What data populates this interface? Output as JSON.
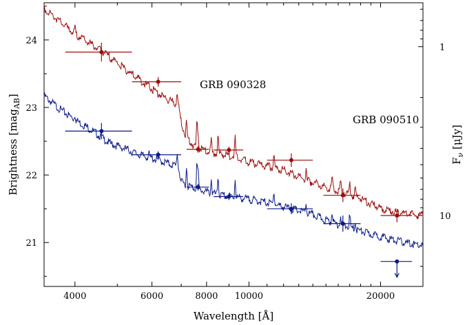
{
  "chart_data": {
    "type": "scatter",
    "xlabel": "Wavelength [Å]",
    "ylabel_left": "Brightness [mag",
    "ylabel_left_sub": "AB",
    "ylabel_right": "F",
    "ylabel_right_sub": "ν",
    "ylabel_right_unit": " [μJy]",
    "x_scale": "log",
    "xlim": [
      3400,
      25000
    ],
    "ylim_left": [
      24.55,
      20.35
    ],
    "x_ticks": [
      4000,
      6000,
      8000,
      10000,
      20000
    ],
    "x_tick_labels": [
      "4000",
      "6000",
      "8000",
      "10000",
      "20000"
    ],
    "y_ticks": [
      21,
      22,
      23,
      24
    ],
    "y_tick_labels": [
      "21",
      "22",
      "23",
      "24"
    ],
    "right_ticks": [
      1,
      10
    ],
    "right_tick_labels": [
      "1",
      "10"
    ],
    "colors": {
      "blue": "#0b1a86",
      "red": "#9b0e0e",
      "axis": "#000000"
    },
    "series": [
      {
        "name": "GRB 090328",
        "color": "#0b1a86",
        "points": [
          {
            "x": 4600,
            "xlo": 3800,
            "xhi": 5400,
            "y": 22.65,
            "yerr": 0.12
          },
          {
            "x": 6200,
            "xlo": 5400,
            "xhi": 7000,
            "y": 22.3,
            "yerr": 0.05
          },
          {
            "x": 7650,
            "xlo": 7200,
            "xhi": 8100,
            "y": 21.82,
            "yerr": 0.05
          },
          {
            "x": 9000,
            "xlo": 8300,
            "xhi": 9700,
            "y": 21.68,
            "yerr": 0.05
          },
          {
            "x": 12500,
            "xlo": 11000,
            "xhi": 14000,
            "y": 21.5,
            "yerr": 0.08
          },
          {
            "x": 16400,
            "xlo": 14800,
            "xhi": 18000,
            "y": 21.28,
            "yerr": 0.12
          },
          {
            "x": 21800,
            "xlo": 20000,
            "xhi": 23600,
            "y": 20.72,
            "yerr": 0.0,
            "upper_limit": true
          }
        ],
        "model": [
          [
            3400,
            23.2
          ],
          [
            3700,
            23.0
          ],
          [
            4000,
            22.85
          ],
          [
            4400,
            22.68
          ],
          [
            4800,
            22.5
          ],
          [
            5200,
            22.42
          ],
          [
            5600,
            22.33
          ],
          [
            6000,
            22.28
          ],
          [
            6400,
            22.22
          ],
          [
            6900,
            22.15
          ],
          [
            7000,
            21.92
          ],
          [
            7400,
            21.85
          ],
          [
            7800,
            21.8
          ],
          [
            8200,
            21.76
          ],
          [
            8700,
            21.72
          ],
          [
            9300,
            21.7
          ],
          [
            10000,
            21.67
          ],
          [
            11000,
            21.62
          ],
          [
            12000,
            21.56
          ],
          [
            13000,
            21.5
          ],
          [
            14000,
            21.44
          ],
          [
            15000,
            21.36
          ],
          [
            16000,
            21.3
          ],
          [
            17000,
            21.26
          ],
          [
            18000,
            21.2
          ],
          [
            19000,
            21.15
          ],
          [
            20000,
            21.12
          ],
          [
            21000,
            21.08
          ],
          [
            22000,
            21.05
          ],
          [
            23000,
            21.02
          ],
          [
            24000,
            21.0
          ],
          [
            25000,
            20.99
          ]
        ],
        "annotation": "GRB 090328"
      },
      {
        "name": "GRB 090510",
        "color": "#9b0e0e",
        "points": [
          {
            "x": 4600,
            "xlo": 3800,
            "xhi": 5400,
            "y": 23.82,
            "yerr": 0.14
          },
          {
            "x": 6200,
            "xlo": 5400,
            "xhi": 7000,
            "y": 23.38,
            "yerr": 0.07
          },
          {
            "x": 7650,
            "xlo": 7200,
            "xhi": 8100,
            "y": 22.38,
            "yerr": 0.05
          },
          {
            "x": 9000,
            "xlo": 8300,
            "xhi": 9700,
            "y": 22.37,
            "yerr": 0.05
          },
          {
            "x": 12500,
            "xlo": 11000,
            "xhi": 14000,
            "y": 22.22,
            "yerr": 0.1
          },
          {
            "x": 16400,
            "xlo": 14800,
            "xhi": 18000,
            "y": 21.7,
            "yerr": 0.1
          },
          {
            "x": 21800,
            "xlo": 20000,
            "xhi": 23600,
            "y": 21.4,
            "yerr": 0.1
          }
        ],
        "model": [
          [
            3400,
            24.5
          ],
          [
            3700,
            24.3
          ],
          [
            4000,
            24.12
          ],
          [
            4400,
            23.95
          ],
          [
            4800,
            23.78
          ],
          [
            5200,
            23.6
          ],
          [
            5600,
            23.45
          ],
          [
            6000,
            23.3
          ],
          [
            6400,
            23.18
          ],
          [
            6900,
            23.06
          ],
          [
            7000,
            22.8
          ],
          [
            7200,
            22.58
          ],
          [
            7500,
            22.45
          ],
          [
            8000,
            22.38
          ],
          [
            8600,
            22.34
          ],
          [
            9300,
            22.3
          ],
          [
            10000,
            22.22
          ],
          [
            11000,
            22.16
          ],
          [
            12000,
            22.1
          ],
          [
            13000,
            22.0
          ],
          [
            14000,
            21.92
          ],
          [
            15000,
            21.85
          ],
          [
            16000,
            21.8
          ],
          [
            17000,
            21.74
          ],
          [
            18000,
            21.68
          ],
          [
            19000,
            21.6
          ],
          [
            20000,
            21.54
          ],
          [
            21000,
            21.5
          ],
          [
            22000,
            21.48
          ],
          [
            23000,
            21.46
          ],
          [
            24000,
            21.44
          ],
          [
            25000,
            21.43
          ]
        ],
        "annotation": "GRB 090510"
      }
    ]
  }
}
